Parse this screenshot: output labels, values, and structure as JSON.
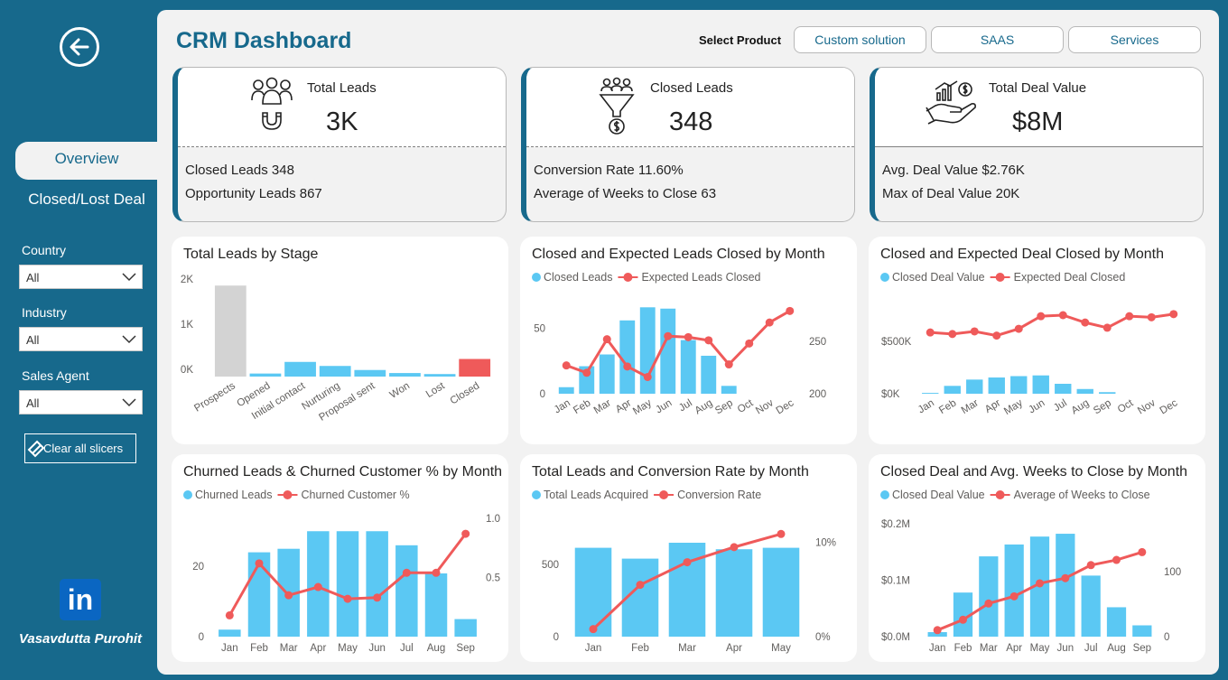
{
  "sidebar": {
    "nav_overview": "Overview",
    "nav_closed_lost": "Closed/Lost Deal",
    "slicers": [
      {
        "label": "Country",
        "value": "All"
      },
      {
        "label": "Industry",
        "value": "All"
      },
      {
        "label": "Sales Agent",
        "value": "All"
      }
    ],
    "clear_label": "Clear all slicers",
    "logo_text": "in",
    "author": "Vasavdutta Purohit"
  },
  "header": {
    "title": "CRM Dashboard",
    "select_label": "Select Product",
    "products": [
      "Custom solution",
      "SAAS",
      "Services"
    ]
  },
  "kpis": [
    {
      "title": "Total Leads",
      "value": "3K",
      "lines": [
        "Closed Leads 348",
        "Opportunity Leads 867"
      ]
    },
    {
      "title": "Closed Leads",
      "value": "348",
      "lines": [
        "Conversion Rate 11.60%",
        "Average of Weeks to Close 63"
      ]
    },
    {
      "title": "Total Deal Value",
      "value": "$8M",
      "lines": [
        "Avg. Deal Value $2.76K",
        "Max of Deal Value 20K"
      ]
    }
  ],
  "colors": {
    "bar": "#5bc8f3",
    "line": "#ef5a5a",
    "grey": "#d3d3d3",
    "brand": "#17698c"
  },
  "chart_data": [
    {
      "id": "stage",
      "type": "bar",
      "title": "Total Leads by Stage",
      "categories": [
        "Prospects",
        "Opened",
        "Initial contact",
        "Nurturing",
        "Proposal sent",
        "Won",
        "Lost",
        "Closed"
      ],
      "values": [
        1800,
        60,
        290,
        210,
        130,
        70,
        50,
        348
      ],
      "bar_colors": [
        "#d3d3d3",
        "#5bc8f3",
        "#5bc8f3",
        "#5bc8f3",
        "#5bc8f3",
        "#5bc8f3",
        "#5bc8f3",
        "#ef5a5a"
      ],
      "ylim": [
        0,
        2000
      ],
      "yticks": [
        "2K",
        "1K",
        "0K"
      ]
    },
    {
      "id": "closed_leads_month",
      "type": "bar+line",
      "title": "Closed and Expected Leads Closed by Month",
      "categories": [
        "Jan",
        "Feb",
        "Mar",
        "Apr",
        "May",
        "Jun",
        "Jul",
        "Aug",
        "Sep",
        "Oct",
        "Nov",
        "Dec"
      ],
      "series": [
        {
          "name": "Closed Leads",
          "type": "bar",
          "axis": "left",
          "values": [
            5,
            21,
            30,
            56,
            66,
            65,
            41,
            29,
            6,
            0,
            0,
            0
          ]
        },
        {
          "name": "Expected Leads Closed",
          "type": "line",
          "axis": "right",
          "values": [
            227,
            220,
            252,
            226,
            216,
            255,
            254,
            251,
            228,
            248,
            268,
            279
          ]
        }
      ],
      "left_ylim": [
        0,
        80
      ],
      "left_yticks": [
        "50",
        "0"
      ],
      "right_ylim": [
        200,
        300
      ],
      "right_yticks": [
        "250",
        "200"
      ]
    },
    {
      "id": "closed_deal_month",
      "type": "bar+line",
      "title": "Closed and Expected Deal Closed by Month",
      "categories": [
        "Jan",
        "Feb",
        "Mar",
        "Apr",
        "May",
        "Jun",
        "Jul",
        "Aug",
        "Sep",
        "Oct",
        "Nov",
        "Dec"
      ],
      "series": [
        {
          "name": "Closed Deal Value",
          "type": "bar",
          "axis": "left",
          "values": [
            8000,
            75000,
            135000,
            155000,
            168000,
            175000,
            95000,
            45000,
            15000,
            0,
            0,
            0
          ]
        },
        {
          "name": "Expected Deal Closed",
          "type": "line",
          "axis": "left",
          "values": [
            585000,
            570000,
            595000,
            555000,
            620000,
            740000,
            750000,
            680000,
            630000,
            740000,
            730000,
            760000
          ]
        }
      ],
      "ylim": [
        0,
        1000000
      ],
      "yticks": [
        "$500K",
        "$0K"
      ]
    },
    {
      "id": "churn_month",
      "type": "bar+line",
      "title": "Churned Leads & Churned Customer % by Month",
      "categories": [
        "Jan",
        "Feb",
        "Mar",
        "Apr",
        "May",
        "Jun",
        "Jul",
        "Aug",
        "Sep"
      ],
      "series": [
        {
          "name": "Churned Leads",
          "type": "bar",
          "axis": "left",
          "values": [
            2,
            24,
            25,
            30,
            30,
            30,
            26,
            18,
            5
          ]
        },
        {
          "name": "Churned Customer %",
          "type": "line",
          "axis": "right",
          "values": [
            0.18,
            0.62,
            0.35,
            0.42,
            0.32,
            0.33,
            0.54,
            0.54,
            0.87
          ]
        }
      ],
      "left_ylim": [
        0,
        37
      ],
      "left_yticks": [
        "20",
        "0"
      ],
      "right_ylim": [
        0,
        1.1
      ],
      "right_yticks": [
        "1.0",
        "0.5"
      ]
    },
    {
      "id": "conversion_month",
      "type": "bar+line",
      "title": "Total Leads and Conversion Rate by Month",
      "categories": [
        "Jan",
        "Feb",
        "Mar",
        "Apr",
        "May"
      ],
      "series": [
        {
          "name": "Total Leads Acquired",
          "type": "bar",
          "axis": "left",
          "values": [
            615,
            540,
            650,
            605,
            615
          ]
        },
        {
          "name": "Conversion Rate",
          "type": "line",
          "axis": "right",
          "values": [
            0.8,
            5.5,
            7.9,
            9.5,
            10.9
          ]
        }
      ],
      "left_ylim": [
        0,
        900
      ],
      "left_yticks": [
        "500",
        "0"
      ],
      "right_ylim": [
        0,
        13.8
      ],
      "right_yticks": [
        "10%",
        "0%"
      ]
    },
    {
      "id": "weeks_month",
      "type": "bar+line",
      "title": "Closed Deal and Avg. Weeks to Close by Month",
      "categories": [
        "Jan",
        "Feb",
        "Mar",
        "Apr",
        "May",
        "Jun",
        "Jul",
        "Aug",
        "Sep"
      ],
      "series": [
        {
          "name": "Closed Deal Value",
          "type": "bar",
          "axis": "left",
          "values": [
            8000,
            78000,
            142000,
            163000,
            177000,
            182000,
            108000,
            52000,
            20000
          ]
        },
        {
          "name": "Average of Weeks to Close",
          "type": "line",
          "axis": "right",
          "values": [
            10,
            26,
            51,
            62,
            82,
            90,
            110,
            118,
            130
          ]
        }
      ],
      "left_ylim": [
        0,
        230000
      ],
      "left_yticks": [
        "$0.2M",
        "$0.1M",
        "$0.0M"
      ],
      "right_ylim": [
        0,
        200
      ],
      "right_yticks": [
        "100",
        "0"
      ]
    }
  ]
}
